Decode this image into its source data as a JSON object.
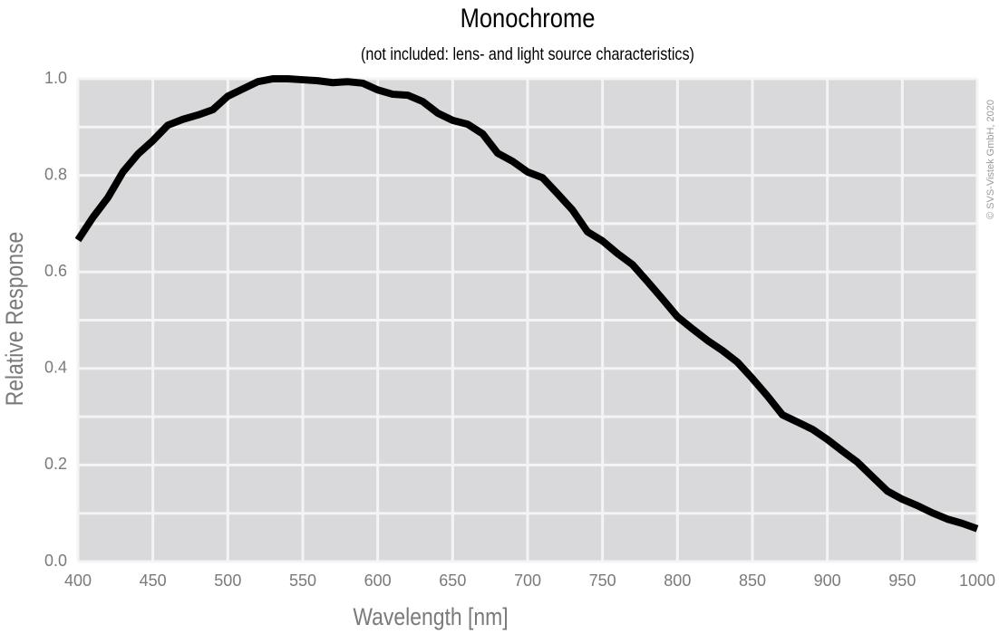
{
  "chart_data": {
    "type": "line",
    "title": "Monochrome",
    "subtitle": "(not included: lens- and light source characteristics)",
    "x_label": "Wavelength [nm]",
    "y_label": "Relative Response",
    "annotation": "© SVS-Vistek GmbH, 2020",
    "x": [
      400,
      410,
      420,
      430,
      440,
      450,
      460,
      470,
      480,
      490,
      500,
      510,
      520,
      530,
      540,
      550,
      560,
      570,
      580,
      590,
      600,
      610,
      620,
      630,
      640,
      650,
      660,
      670,
      680,
      690,
      700,
      710,
      720,
      730,
      740,
      750,
      760,
      770,
      780,
      790,
      800,
      810,
      820,
      830,
      840,
      850,
      860,
      870,
      880,
      890,
      900,
      910,
      920,
      930,
      940,
      950,
      960,
      970,
      980,
      990,
      1000
    ],
    "series": [
      {
        "name": "Monochrome",
        "color": "#000000",
        "values": [
          0.666,
          0.713,
          0.754,
          0.807,
          0.844,
          0.872,
          0.904,
          0.916,
          0.925,
          0.936,
          0.964,
          0.979,
          0.994,
          1.0,
          1.0,
          0.998,
          0.996,
          0.992,
          0.994,
          0.991,
          0.977,
          0.968,
          0.966,
          0.953,
          0.929,
          0.914,
          0.906,
          0.886,
          0.846,
          0.829,
          0.807,
          0.795,
          0.762,
          0.728,
          0.683,
          0.664,
          0.638,
          0.615,
          0.58,
          0.544,
          0.507,
          0.482,
          0.458,
          0.437,
          0.413,
          0.379,
          0.343,
          0.304,
          0.289,
          0.274,
          0.253,
          0.229,
          0.206,
          0.176,
          0.146,
          0.129,
          0.116,
          0.101,
          0.088,
          0.079,
          0.068
        ]
      }
    ],
    "xlim": [
      400,
      1000
    ],
    "xticks": [
      400,
      450,
      500,
      550,
      600,
      650,
      700,
      750,
      800,
      850,
      900,
      950,
      1000
    ],
    "ylim": [
      0,
      1
    ],
    "yticks": [
      {
        "value": 0,
        "label": "0.0"
      },
      0.2,
      0.4,
      0.6,
      0.8,
      {
        "value": 1,
        "label": "1.0"
      }
    ],
    "grid": true
  }
}
